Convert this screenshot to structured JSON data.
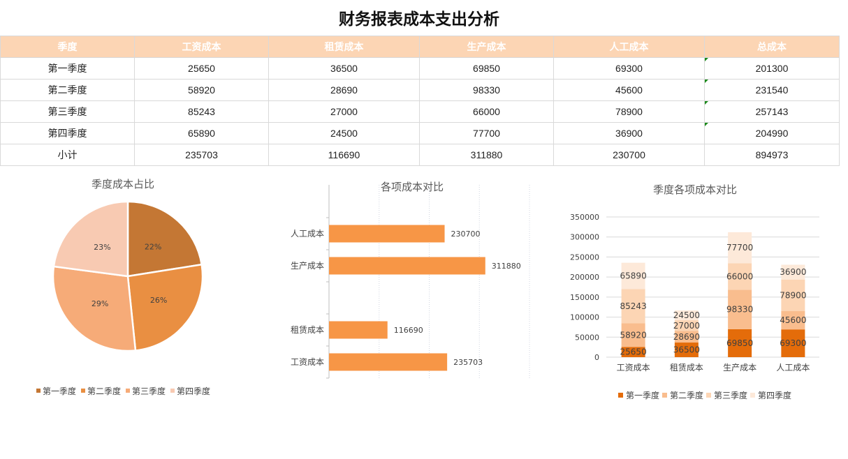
{
  "title": "财务报表成本支出分析",
  "table": {
    "headers": [
      "季度",
      "工资成本",
      "租赁成本",
      "生产成本",
      "人工成本",
      "总成本"
    ],
    "rows": [
      [
        "第一季度",
        "25650",
        "36500",
        "69850",
        "69300",
        "201300"
      ],
      [
        "第二季度",
        "58920",
        "28690",
        "98330",
        "45600",
        "231540"
      ],
      [
        "第三季度",
        "85243",
        "27000",
        "66000",
        "78900",
        "257143"
      ],
      [
        "第四季度",
        "65890",
        "24500",
        "77700",
        "36900",
        "204990"
      ],
      [
        "小计",
        "235703",
        "116690",
        "311880",
        "230700",
        "894973"
      ]
    ]
  },
  "chart_data": [
    {
      "type": "pie",
      "title": "季度成本占比",
      "categories": [
        "第一季度",
        "第二季度",
        "第三季度",
        "第四季度"
      ],
      "values": [
        201300,
        231540,
        257143,
        204990
      ],
      "labels": [
        "22%",
        "26%",
        "29%",
        "23%"
      ],
      "colors": [
        "#c47734",
        "#e98f42",
        "#f6ab78",
        "#f8cab2"
      ],
      "legend": "bottom"
    },
    {
      "type": "bar",
      "orientation": "horizontal",
      "title": "各项成本对比",
      "categories": [
        "工资成本",
        "租赁成本",
        "",
        "生产成本",
        "人工成本"
      ],
      "values": [
        235703,
        116690,
        null,
        311880,
        230700
      ],
      "data_labels": [
        "235703",
        "116690",
        "",
        "311880",
        "230700"
      ],
      "xlim": [
        0,
        400000
      ],
      "grid": true,
      "color": "#f79646"
    },
    {
      "type": "bar",
      "stacked": true,
      "title": "季度各项成本对比",
      "categories": [
        "工资成本",
        "租赁成本",
        "生产成本",
        "人工成本"
      ],
      "series": [
        {
          "name": "第一季度",
          "values": [
            25650,
            36500,
            69850,
            69300
          ],
          "color": "#e46c0a"
        },
        {
          "name": "第二季度",
          "values": [
            58920,
            28690,
            98330,
            45600
          ],
          "color": "#f9bd8e"
        },
        {
          "name": "第三季度",
          "values": [
            85243,
            27000,
            66000,
            78900
          ],
          "color": "#fcd5b4"
        },
        {
          "name": "第四季度",
          "values": [
            65890,
            24500,
            77700,
            36900
          ],
          "color": "#fde9d9"
        }
      ],
      "yticks": [
        "0",
        "50000",
        "100000",
        "150000",
        "200000",
        "250000",
        "300000",
        "350000"
      ],
      "ylim": [
        0,
        350000
      ],
      "grid": true,
      "legend": "bottom"
    }
  ]
}
